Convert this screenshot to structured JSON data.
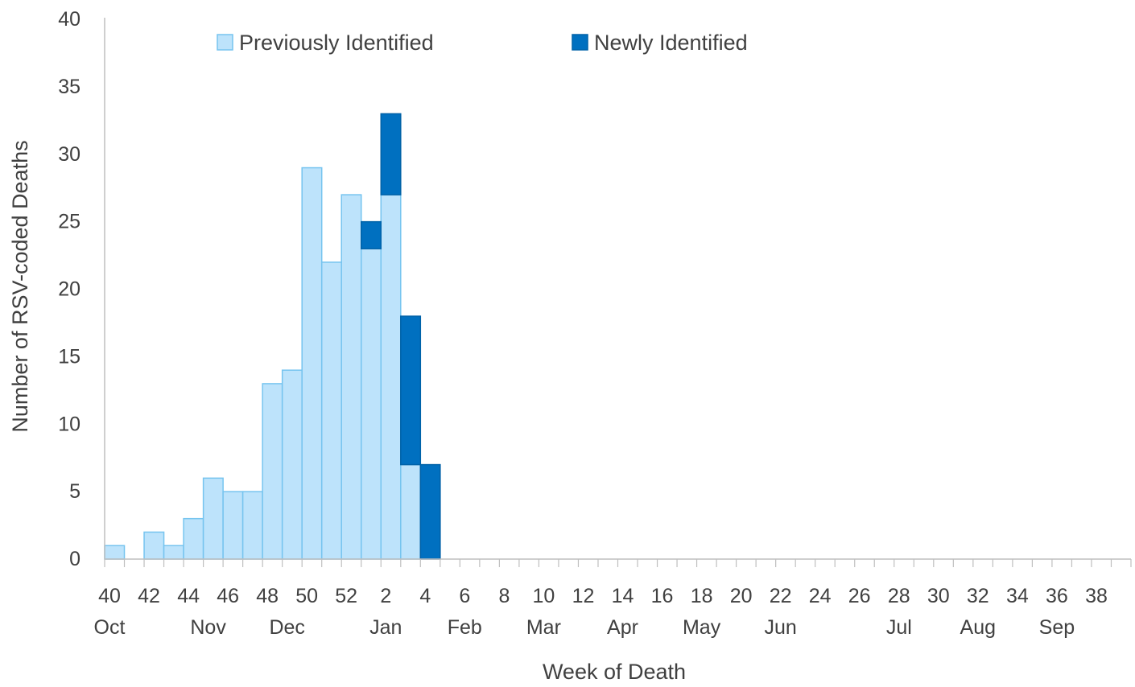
{
  "chart_data": {
    "type": "bar",
    "stacked": true,
    "title": "",
    "xlabel": "Week of Death",
    "ylabel": "Number of RSV-coded Deaths",
    "ylim": [
      0,
      40
    ],
    "yticks": [
      0,
      5,
      10,
      15,
      20,
      25,
      30,
      35,
      40
    ],
    "grid": false,
    "legend_position": "top",
    "weeks": [
      40,
      41,
      42,
      43,
      44,
      45,
      46,
      47,
      48,
      49,
      50,
      51,
      52,
      1,
      2,
      3,
      4,
      5,
      6,
      7,
      8,
      9,
      10,
      11,
      12,
      13,
      14,
      15,
      16,
      17,
      18,
      19,
      20,
      21,
      22,
      23,
      24,
      25,
      26,
      27,
      28,
      29,
      30,
      31,
      32,
      33,
      34,
      35,
      36,
      37,
      38,
      39
    ],
    "week_tick_labels": [
      "40",
      "42",
      "44",
      "46",
      "48",
      "50",
      "52",
      "2",
      "4",
      "6",
      "8",
      "10",
      "12",
      "14",
      "16",
      "18",
      "20",
      "22",
      "24",
      "26",
      "28",
      "30",
      "32",
      "34",
      "36",
      "38"
    ],
    "month_labels": [
      {
        "label": "Oct",
        "week": 40
      },
      {
        "label": "Nov",
        "week": 45
      },
      {
        "label": "Dec",
        "week": 49
      },
      {
        "label": "Jan",
        "week": 2
      },
      {
        "label": "Feb",
        "week": 6
      },
      {
        "label": "Mar",
        "week": 10
      },
      {
        "label": "Apr",
        "week": 14
      },
      {
        "label": "May",
        "week": 18
      },
      {
        "label": "Jun",
        "week": 22
      },
      {
        "label": "Jul",
        "week": 28
      },
      {
        "label": "Aug",
        "week": 32
      },
      {
        "label": "Sep",
        "week": 36
      }
    ],
    "series": [
      {
        "name": "Previously Identified",
        "color": "#bde3fb",
        "values": [
          1,
          0,
          2,
          1,
          3,
          6,
          5,
          5,
          13,
          14,
          29,
          22,
          27,
          23,
          27,
          7,
          0,
          0,
          0,
          0,
          0,
          0,
          0,
          0,
          0,
          0,
          0,
          0,
          0,
          0,
          0,
          0,
          0,
          0,
          0,
          0,
          0,
          0,
          0,
          0,
          0,
          0,
          0,
          0,
          0,
          0,
          0,
          0,
          0,
          0,
          0,
          0
        ]
      },
      {
        "name": "Newly Identified",
        "color": "#0070c0",
        "values": [
          0,
          0,
          0,
          0,
          0,
          0,
          0,
          0,
          0,
          0,
          0,
          0,
          0,
          2,
          6,
          11,
          7,
          0,
          0,
          0,
          0,
          0,
          0,
          0,
          0,
          0,
          0,
          0,
          0,
          0,
          0,
          0,
          0,
          0,
          0,
          0,
          0,
          0,
          0,
          0,
          0,
          0,
          0,
          0,
          0,
          0,
          0,
          0,
          0,
          0,
          0,
          0
        ]
      }
    ]
  }
}
